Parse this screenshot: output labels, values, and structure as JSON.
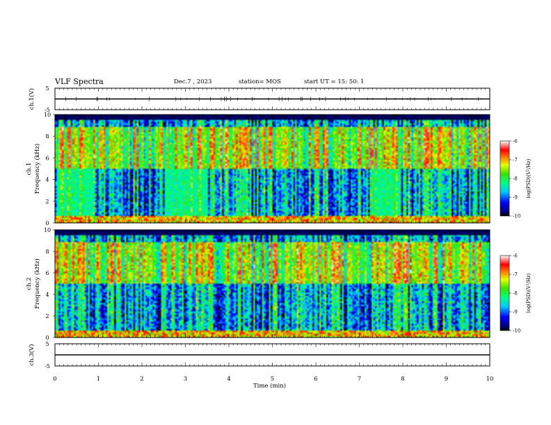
{
  "header": {
    "title": "VLF Spectra",
    "date": "Dec.7 , 2023",
    "station": "station= MOS",
    "start": "start  UT =   15: 50: 1"
  },
  "chart_data": [
    {
      "type": "line",
      "panel": "ch1",
      "ylabel": "ch.1(V)",
      "ylim": [
        -5,
        5
      ],
      "yticks": [
        "5",
        "-5"
      ],
      "xlim": [
        0,
        10
      ],
      "x": [
        0,
        10
      ],
      "values": [
        0,
        0
      ]
    },
    {
      "type": "heatmap",
      "panel": "spec1",
      "ylabel": "ch.1\nFrequency (kHz)",
      "ylim": [
        0,
        10
      ],
      "yticks": [
        "0",
        "2",
        "4",
        "6",
        "8",
        "10"
      ],
      "xlim": [
        0,
        10
      ],
      "colorbar": {
        "label": "log(PSD)(V²/Hz)",
        "range": [
          -10,
          -6
        ],
        "ticks": [
          "-6",
          "-7",
          "-8",
          "-9",
          "-10"
        ]
      }
    },
    {
      "type": "heatmap",
      "panel": "spec2",
      "ylabel": "ch.2\nFrequency (kHz)",
      "ylim": [
        0,
        10
      ],
      "yticks": [
        "0",
        "2",
        "4",
        "6",
        "8",
        "10"
      ],
      "xlim": [
        0,
        10
      ],
      "colorbar": {
        "label": "log(PSD)(V²/Hz)",
        "range": [
          -10,
          -6
        ],
        "ticks": [
          "-6",
          "-7",
          "-8",
          "-9",
          "-10"
        ]
      }
    },
    {
      "type": "line",
      "panel": "ch3",
      "ylabel": "ch.3(V)",
      "ylim": [
        -5,
        5
      ],
      "yticks": [
        "5",
        "-5"
      ],
      "xlim": [
        0,
        10
      ],
      "x": [
        0,
        10
      ],
      "values": [
        0,
        0
      ],
      "xlabel": "Time (min)",
      "xticks": [
        "0",
        "1",
        "2",
        "3",
        "4",
        "5",
        "6",
        "7",
        "8",
        "9",
        "10"
      ]
    }
  ]
}
